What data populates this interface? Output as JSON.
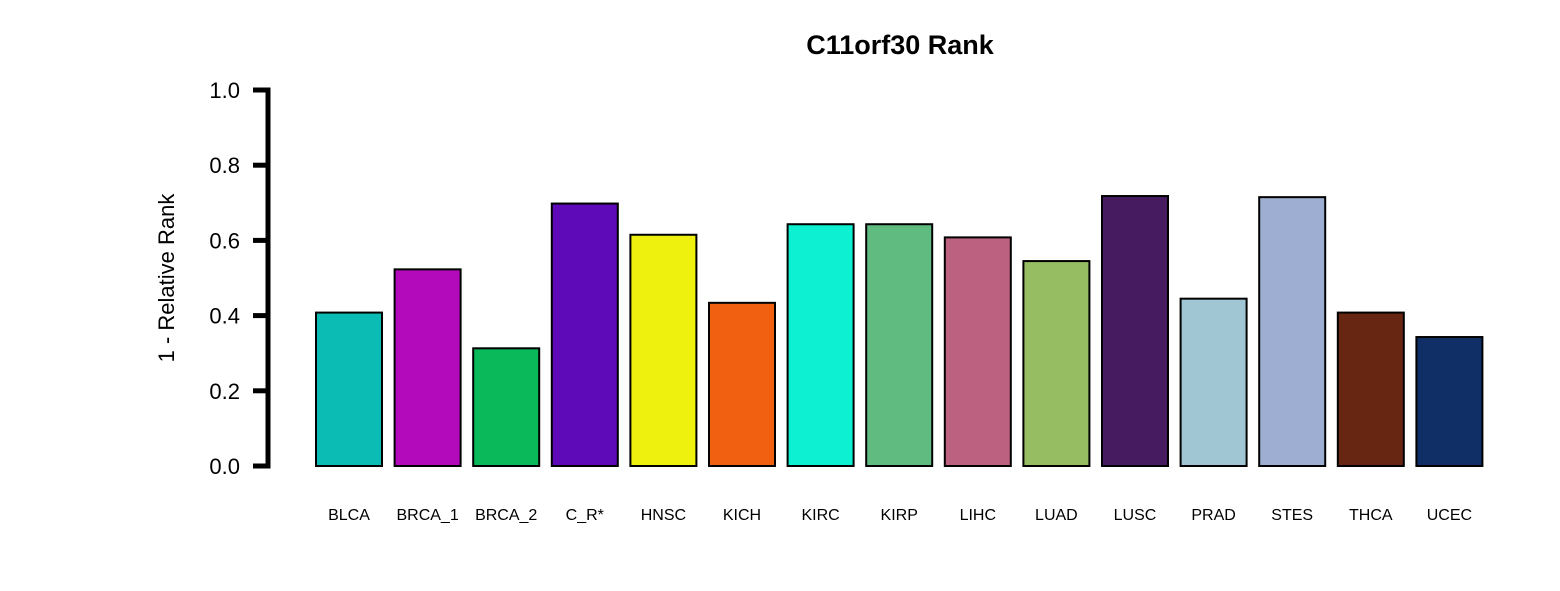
{
  "chart_data": {
    "type": "bar",
    "title": "C11orf30 Rank",
    "xlabel": "",
    "ylabel": "1 - Relative Rank",
    "ylim": [
      0,
      1
    ],
    "yticks": [
      "0.0",
      "0.2",
      "0.4",
      "0.6",
      "0.8",
      "1.0"
    ],
    "ytick_values": [
      0,
      0.2,
      0.4,
      0.6,
      0.8,
      1.0
    ],
    "grid": false,
    "categories": [
      "BLCA",
      "BRCA_1",
      "BRCA_2",
      "C_R*",
      "HNSC",
      "KICH",
      "KIRC",
      "KIRP",
      "LIHC",
      "LUAD",
      "LUSC",
      "PRAD",
      "STES",
      "THCA",
      "UCEC"
    ],
    "values": [
      0.408,
      0.523,
      0.313,
      0.698,
      0.615,
      0.434,
      0.643,
      0.643,
      0.608,
      0.545,
      0.718,
      0.445,
      0.715,
      0.408,
      0.343
    ],
    "colors": [
      "#0bbcb4",
      "#b30bbb",
      "#0ab959",
      "#5e0ab9",
      "#eef00e",
      "#f06010",
      "#0ef0d2",
      "#60bb80",
      "#bd6180",
      "#96bd61",
      "#461b60",
      "#a0c6d4",
      "#9eaed2",
      "#662611",
      "#0f2f66"
    ]
  }
}
